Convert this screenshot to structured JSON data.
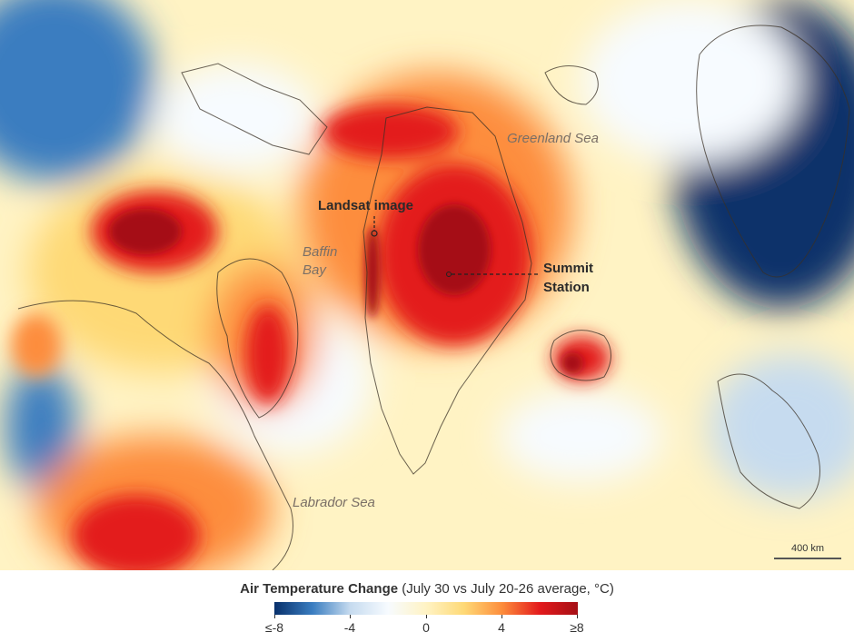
{
  "colors": {
    "deep_blue": "#08306b",
    "blue": "#3a7dc0",
    "light_blue": "#c6dbef",
    "white": "#f7fbff",
    "pale_yellow": "#fff3c4",
    "yellow": "#fed976",
    "orange": "#fd8d3c",
    "red": "#e31a1c",
    "dark_red": "#a50f15"
  },
  "labels": {
    "greenland_sea": "Greenland Sea",
    "baffin_bay": "Baffin\nBay",
    "labrador_sea": "Labrador Sea",
    "landsat_image": "Landsat image",
    "summit_station": "Summit\nStation"
  },
  "scale_bar": {
    "label": "400 km"
  },
  "legend": {
    "title_bold": "Air Temperature Change",
    "title_rest": " (July 30 vs July 20-26 average, °C)",
    "ticks": [
      "≤-8",
      "-4",
      "0",
      "4",
      "≥8"
    ]
  }
}
